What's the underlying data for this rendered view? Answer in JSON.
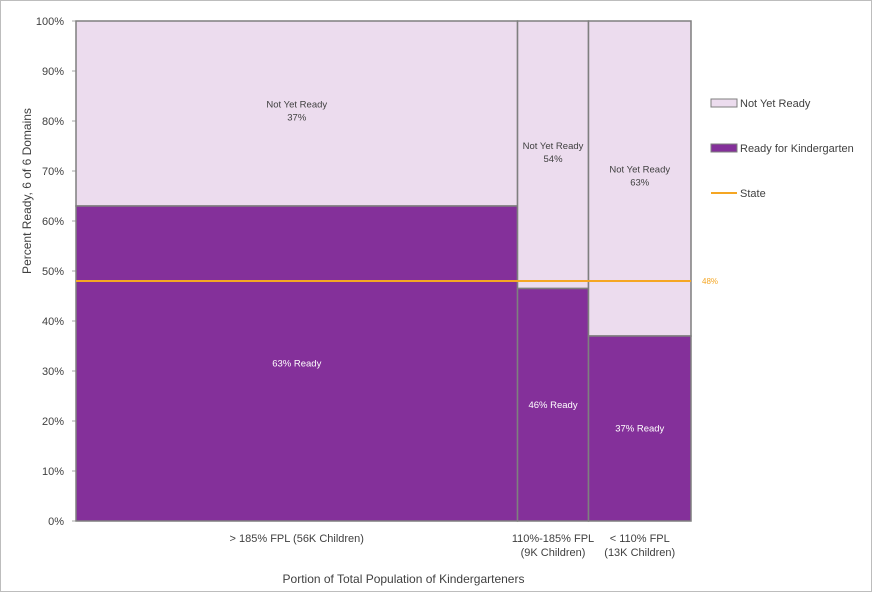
{
  "chart_data": {
    "type": "bar",
    "subtype": "mekko",
    "title": "",
    "xlabel": "Portion of Total Population of Kindergarteners",
    "ylabel": "Percent Ready, 6 of 6 Domains",
    "ylim": [
      0,
      100
    ],
    "y_ticks": [
      "0%",
      "10%",
      "20%",
      "30%",
      "40%",
      "50%",
      "60%",
      "70%",
      "80%",
      "90%",
      "100%"
    ],
    "grid": false,
    "legend_position": "right",
    "categories": [
      {
        "label": "> 185% FPL (56K Children)",
        "lines": [
          "> 185% FPL (56K Children)"
        ],
        "children_k": 56,
        "ready_label": "63% Ready",
        "not_ready_label": "Not Yet Ready",
        "not_ready_value_label": "37%"
      },
      {
        "label": "110%-185% FPL (9K Children)",
        "lines": [
          "110%-185% FPL",
          "(9K Children)"
        ],
        "children_k": 9,
        "ready_label": "46% Ready",
        "not_ready_label": "Not Yet Ready",
        "not_ready_value_label": "54%"
      },
      {
        "label": "< 110% FPL (13K Children)",
        "lines": [
          "< 110% FPL",
          "(13K Children)"
        ],
        "children_k": 13,
        "ready_label": "37% Ready",
        "not_ready_label": "Not Yet Ready",
        "not_ready_value_label": "63%"
      }
    ],
    "series": [
      {
        "name": "Ready for Kindergarten",
        "values": [
          63,
          46.5,
          37
        ],
        "color": "#84309a"
      },
      {
        "name": "Not Yet Ready",
        "values": [
          37,
          53.5,
          63
        ],
        "color": "#ecdcee"
      }
    ],
    "reference_line": {
      "name": "State",
      "value": 48,
      "label": "48%",
      "color": "#f5a623"
    }
  }
}
